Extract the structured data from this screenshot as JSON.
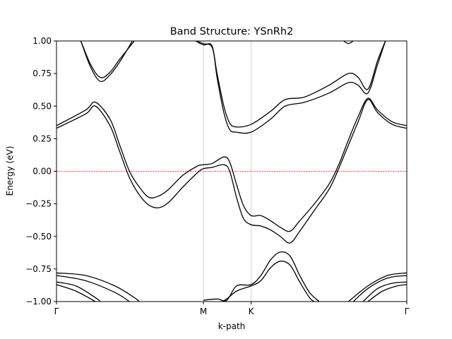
{
  "chart_data": {
    "type": "line",
    "title": "Band Structure: YSnRh2",
    "xlabel": "k-path",
    "ylabel": "Energy (eV)",
    "ylim": [
      -1.0,
      1.0
    ],
    "xlim": [
      0,
      3.6
    ],
    "yticks": [
      1.0,
      0.75,
      0.5,
      0.25,
      0.0,
      -0.25,
      -0.5,
      -0.75,
      -1.0
    ],
    "ytick_labels": [
      "1.00",
      "0.75",
      "0.50",
      "0.25",
      "0.00",
      "−0.25",
      "−0.50",
      "−0.75",
      "−1.00"
    ],
    "high_symmetry_points": [
      {
        "label": "Γ",
        "x": 0.0
      },
      {
        "label": "M",
        "x": 1.51
      },
      {
        "label": "K",
        "x": 2.0
      },
      {
        "label": "Γ",
        "x": 3.6
      }
    ],
    "fermi_level": 0.0,
    "colors": {
      "bands": "#000000",
      "fermi_line": "#ff0000",
      "symmetry_lines": "#cccccc"
    },
    "series": [
      {
        "values": [
          [
            0.0,
            0.35
          ],
          [
            0.3,
            0.47
          ],
          [
            0.4,
            0.53
          ],
          [
            0.55,
            0.4
          ],
          [
            0.65,
            0.2
          ],
          [
            0.75,
            0.0
          ],
          [
            0.85,
            -0.12
          ],
          [
            0.95,
            -0.2
          ],
          [
            1.05,
            -0.19
          ],
          [
            1.15,
            -0.14
          ],
          [
            1.3,
            -0.03
          ],
          [
            1.45,
            0.04
          ],
          [
            1.51,
            0.05
          ],
          [
            1.6,
            0.06
          ],
          [
            1.72,
            0.11
          ],
          [
            1.78,
            0.07
          ],
          [
            1.85,
            -0.1
          ],
          [
            1.92,
            -0.26
          ],
          [
            2.0,
            -0.34
          ],
          [
            2.1,
            -0.34
          ],
          [
            2.2,
            -0.38
          ],
          [
            2.3,
            -0.43
          ],
          [
            2.4,
            -0.46
          ],
          [
            2.5,
            -0.38
          ],
          [
            2.65,
            -0.25
          ],
          [
            2.8,
            -0.1
          ],
          [
            2.9,
            0.05
          ],
          [
            3.0,
            0.24
          ],
          [
            3.1,
            0.42
          ],
          [
            3.2,
            0.56
          ],
          [
            3.3,
            0.47
          ],
          [
            3.45,
            0.38
          ],
          [
            3.6,
            0.35
          ]
        ]
      },
      {
        "values": [
          [
            0.0,
            0.33
          ],
          [
            0.3,
            0.44
          ],
          [
            0.4,
            0.5
          ],
          [
            0.55,
            0.35
          ],
          [
            0.65,
            0.15
          ],
          [
            0.75,
            -0.05
          ],
          [
            0.85,
            -0.18
          ],
          [
            0.95,
            -0.26
          ],
          [
            1.05,
            -0.28
          ],
          [
            1.15,
            -0.24
          ],
          [
            1.3,
            -0.12
          ],
          [
            1.45,
            -0.01
          ],
          [
            1.51,
            0.02
          ],
          [
            1.6,
            0.03
          ],
          [
            1.72,
            0.05
          ],
          [
            1.78,
            0.0
          ],
          [
            1.85,
            -0.2
          ],
          [
            1.92,
            -0.36
          ],
          [
            2.0,
            -0.41
          ],
          [
            2.1,
            -0.42
          ],
          [
            2.2,
            -0.45
          ],
          [
            2.3,
            -0.5
          ],
          [
            2.4,
            -0.55
          ],
          [
            2.5,
            -0.46
          ],
          [
            2.65,
            -0.3
          ],
          [
            2.8,
            -0.14
          ],
          [
            2.9,
            0.02
          ],
          [
            3.0,
            0.2
          ],
          [
            3.1,
            0.38
          ],
          [
            3.2,
            0.55
          ],
          [
            3.3,
            0.45
          ],
          [
            3.45,
            0.36
          ],
          [
            3.6,
            0.33
          ]
        ]
      },
      {
        "values": [
          [
            0.25,
            1.0
          ],
          [
            0.35,
            0.82
          ],
          [
            0.45,
            0.72
          ],
          [
            0.55,
            0.76
          ],
          [
            0.65,
            0.86
          ],
          [
            0.8,
            1.0
          ]
        ]
      },
      {
        "values": [
          [
            0.25,
            1.0
          ],
          [
            0.35,
            0.8
          ],
          [
            0.45,
            0.69
          ],
          [
            0.55,
            0.74
          ],
          [
            0.65,
            0.84
          ],
          [
            0.78,
            1.0
          ]
        ]
      },
      {
        "values": [
          [
            1.43,
            1.0
          ],
          [
            1.51,
            0.98
          ],
          [
            1.6,
            0.95
          ],
          [
            1.65,
            0.75
          ],
          [
            1.72,
            0.5
          ],
          [
            1.78,
            0.37
          ],
          [
            1.85,
            0.34
          ],
          [
            2.0,
            0.36
          ],
          [
            2.2,
            0.46
          ],
          [
            2.35,
            0.55
          ],
          [
            2.55,
            0.57
          ],
          [
            2.8,
            0.66
          ],
          [
            3.0,
            0.75
          ],
          [
            3.1,
            0.72
          ],
          [
            3.2,
            0.63
          ],
          [
            3.3,
            0.85
          ],
          [
            3.38,
            1.0
          ]
        ]
      },
      {
        "values": [
          [
            1.43,
            1.0
          ],
          [
            1.51,
            0.97
          ],
          [
            1.6,
            0.96
          ],
          [
            1.65,
            0.72
          ],
          [
            1.72,
            0.45
          ],
          [
            1.78,
            0.32
          ],
          [
            1.85,
            0.3
          ],
          [
            2.0,
            0.3
          ],
          [
            2.2,
            0.4
          ],
          [
            2.35,
            0.5
          ],
          [
            2.55,
            0.53
          ],
          [
            2.8,
            0.6
          ],
          [
            3.0,
            0.68
          ],
          [
            3.1,
            0.66
          ],
          [
            3.2,
            0.6
          ],
          [
            3.3,
            0.82
          ],
          [
            3.38,
            1.0
          ]
        ]
      },
      {
        "values": [
          [
            2.95,
            1.0
          ],
          [
            3.0,
            0.98
          ],
          [
            3.05,
            1.0
          ]
        ]
      },
      {
        "values": [
          [
            0.0,
            -0.78
          ],
          [
            0.3,
            -0.8
          ],
          [
            0.6,
            -0.88
          ],
          [
            0.8,
            -0.97
          ],
          [
            0.85,
            -1.0
          ]
        ]
      },
      {
        "values": [
          [
            0.0,
            -0.8
          ],
          [
            0.3,
            -0.84
          ],
          [
            0.6,
            -0.93
          ],
          [
            0.75,
            -1.0
          ]
        ]
      },
      {
        "values": [
          [
            0.0,
            -0.85
          ],
          [
            0.2,
            -0.88
          ],
          [
            0.4,
            -0.97
          ],
          [
            0.45,
            -1.0
          ]
        ]
      },
      {
        "values": [
          [
            0.0,
            -0.87
          ],
          [
            0.2,
            -0.92
          ],
          [
            0.4,
            -1.0
          ]
        ]
      },
      {
        "values": [
          [
            1.51,
            -0.99
          ],
          [
            1.65,
            -0.98
          ],
          [
            1.75,
            -0.99
          ],
          [
            1.85,
            -0.88
          ],
          [
            2.0,
            -0.87
          ],
          [
            2.1,
            -0.8
          ],
          [
            2.2,
            -0.68
          ],
          [
            2.3,
            -0.62
          ],
          [
            2.4,
            -0.65
          ],
          [
            2.5,
            -0.8
          ],
          [
            2.6,
            -0.93
          ],
          [
            2.7,
            -1.0
          ]
        ]
      },
      {
        "values": [
          [
            1.51,
            -1.0
          ],
          [
            1.7,
            -1.0
          ],
          [
            1.85,
            -0.92
          ],
          [
            2.0,
            -0.88
          ],
          [
            2.1,
            -0.84
          ],
          [
            2.2,
            -0.74
          ],
          [
            2.3,
            -0.69
          ],
          [
            2.4,
            -0.72
          ],
          [
            2.5,
            -0.85
          ],
          [
            2.6,
            -0.97
          ],
          [
            2.65,
            -1.0
          ]
        ]
      },
      {
        "values": [
          [
            3.0,
            -1.0
          ],
          [
            3.2,
            -0.88
          ],
          [
            3.4,
            -0.8
          ],
          [
            3.6,
            -0.78
          ]
        ]
      },
      {
        "values": [
          [
            3.05,
            -1.0
          ],
          [
            3.2,
            -0.9
          ],
          [
            3.4,
            -0.82
          ],
          [
            3.6,
            -0.8
          ]
        ]
      },
      {
        "values": [
          [
            3.15,
            -1.0
          ],
          [
            3.3,
            -0.9
          ],
          [
            3.45,
            -0.86
          ],
          [
            3.6,
            -0.85
          ]
        ]
      },
      {
        "values": [
          [
            3.2,
            -1.0
          ],
          [
            3.35,
            -0.92
          ],
          [
            3.5,
            -0.88
          ],
          [
            3.6,
            -0.87
          ]
        ]
      }
    ]
  }
}
